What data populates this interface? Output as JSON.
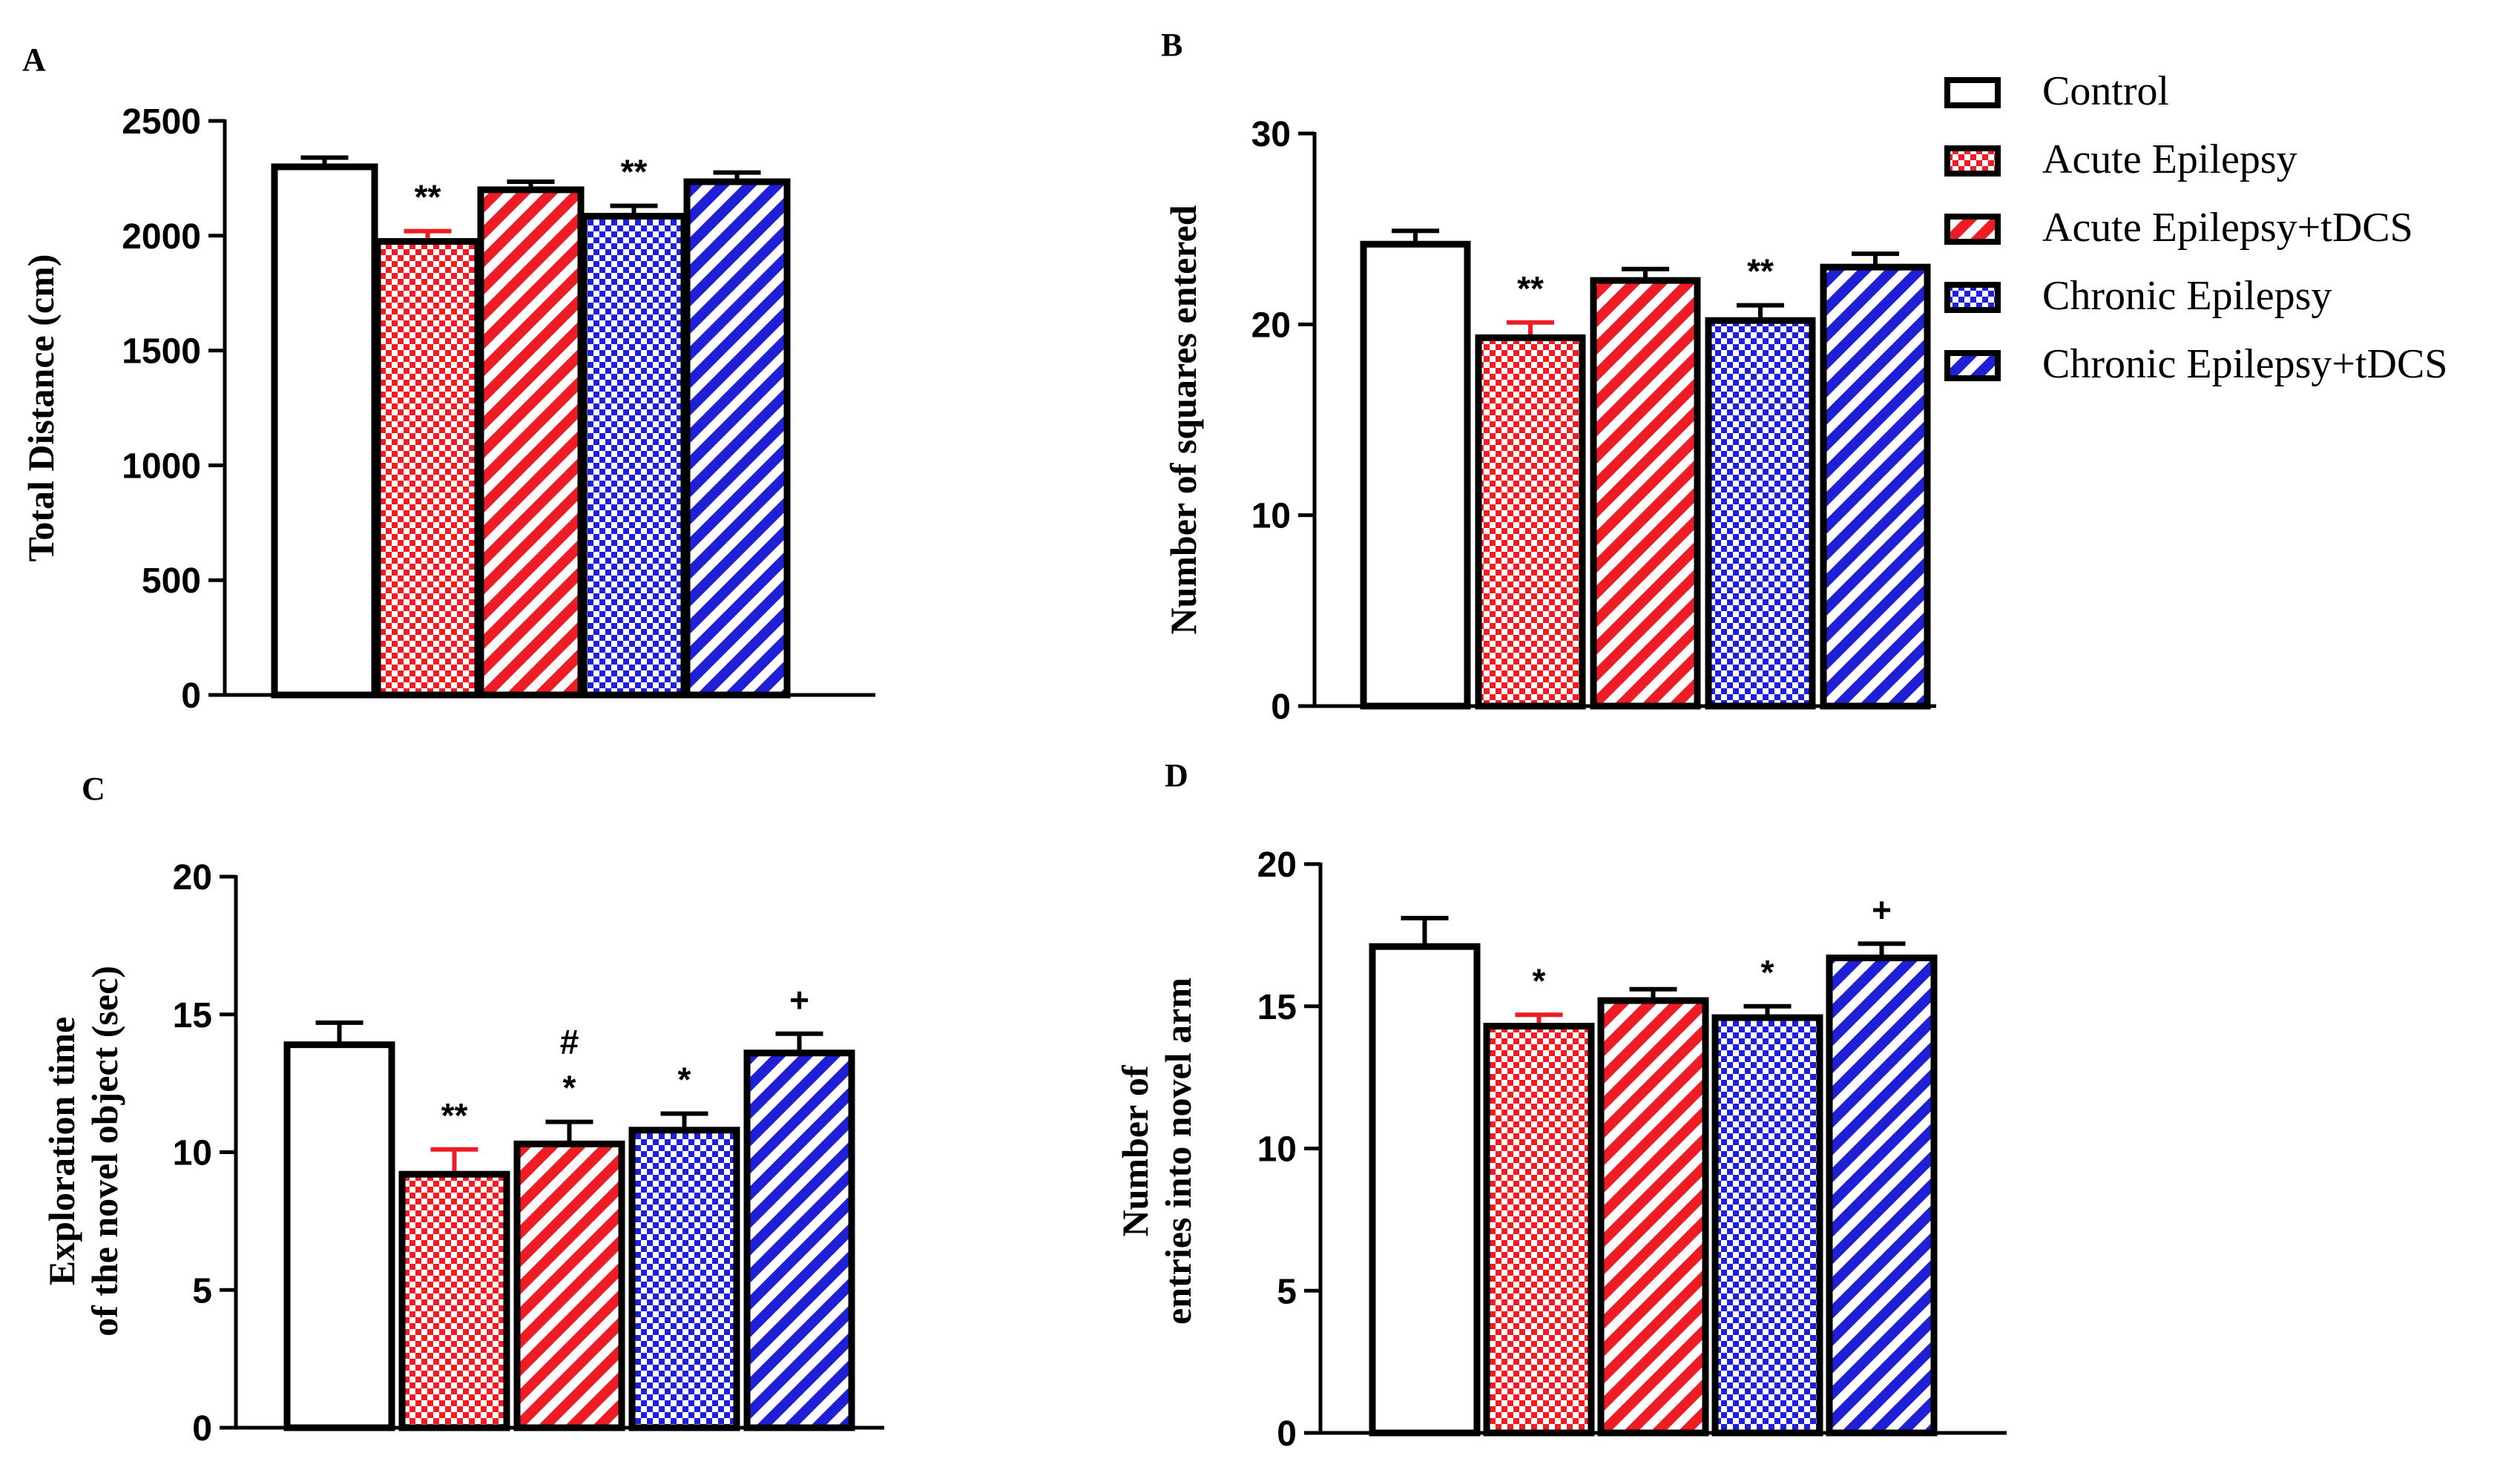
{
  "chart_data": [
    {
      "panel": "A",
      "type": "bar",
      "categories": [
        "Control",
        "Acute Epilepsy",
        "Acute Epilepsy+tDCS",
        "Chronic Epilepsy",
        "Chronic Epilepsy+tDCS"
      ],
      "values": [
        2300,
        1975,
        2200,
        2085,
        2235
      ],
      "errors": [
        40,
        45,
        35,
        45,
        40
      ],
      "significance": [
        "",
        "**",
        "",
        "**",
        ""
      ],
      "ylabel": "Total Distance (cm)",
      "ylim": [
        0,
        2500
      ],
      "yticks": [
        "0",
        "500",
        "1000",
        "1500",
        "2000",
        "2500"
      ],
      "grid": false
    },
    {
      "panel": "B",
      "type": "bar",
      "categories": [
        "Control",
        "Acute Epilepsy",
        "Acute Epilepsy+tDCS",
        "Chronic Epilepsy",
        "Chronic Epilepsy+tDCS"
      ],
      "values": [
        24.2,
        19.3,
        22.3,
        20.2,
        23.0
      ],
      "errors": [
        0.7,
        0.8,
        0.6,
        0.8,
        0.7
      ],
      "significance": [
        "",
        "**",
        "",
        "**",
        ""
      ],
      "ylabel": "Number of squares entered",
      "ylim": [
        0,
        30
      ],
      "yticks": [
        "0",
        "10",
        "20",
        "30"
      ],
      "grid": false
    },
    {
      "panel": "C",
      "type": "bar",
      "categories": [
        "Control",
        "Acute Epilepsy",
        "Acute Epilepsy+tDCS",
        "Chronic Epilepsy",
        "Chronic Epilepsy+tDCS"
      ],
      "values": [
        13.9,
        9.2,
        10.3,
        10.8,
        13.6
      ],
      "errors": [
        0.8,
        0.9,
        0.8,
        0.6,
        0.7
      ],
      "significance": [
        "",
        "**",
        "#\n*",
        "*",
        "+"
      ],
      "ylabel_lines": [
        "Exploration time",
        "of the novel object (sec)"
      ],
      "ylim": [
        0,
        20
      ],
      "yticks": [
        "0",
        "5",
        "10",
        "15",
        "20"
      ],
      "grid": false
    },
    {
      "panel": "D",
      "type": "bar",
      "categories": [
        "Control",
        "Acute Epilepsy",
        "Acute Epilepsy+tDCS",
        "Chronic Epilepsy",
        "Chronic Epilepsy+tDCS"
      ],
      "values": [
        17.1,
        14.3,
        15.2,
        14.6,
        16.7
      ],
      "errors": [
        1.0,
        0.4,
        0.4,
        0.4,
        0.5
      ],
      "significance": [
        "",
        "*",
        "",
        "*",
        "+"
      ],
      "ylabel_lines": [
        "Number of",
        "entries  into novel arm"
      ],
      "ylim": [
        0,
        20
      ],
      "yticks": [
        "0",
        "5",
        "10",
        "15",
        "20"
      ],
      "grid": false
    }
  ],
  "legend": {
    "placement": "top-right",
    "entries": [
      {
        "label": "Control",
        "color": "#ffffff",
        "pattern": "none"
      },
      {
        "label": "Acute Epilepsy",
        "color": "#ee1c25",
        "pattern": "checker"
      },
      {
        "label": "Acute Epilepsy+tDCS",
        "color": "#ee1c25",
        "pattern": "diagonal"
      },
      {
        "label": "Chronic Epilepsy",
        "color": "#1f1fd6",
        "pattern": "checker"
      },
      {
        "label": "Chronic Epilepsy+tDCS",
        "color": "#1f1fd6",
        "pattern": "diagonal"
      }
    ]
  }
}
